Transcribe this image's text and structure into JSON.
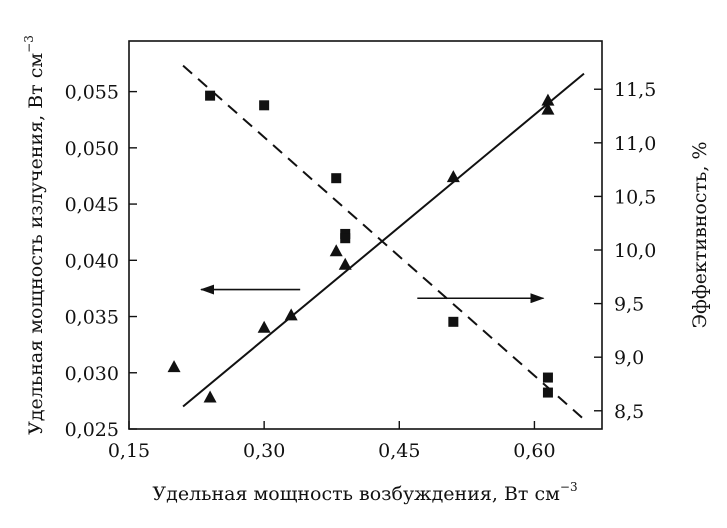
{
  "chart_data": {
    "type": "scatter",
    "xlabel": "Удельная мощность возбуждения, Вт см",
    "xlabel_sup": "−3",
    "ylabel": "Удельная мощность излучения, Вт см",
    "ylabel_sup": "−3",
    "y2label": "Эффективность, %",
    "xlim": [
      0.15,
      0.675
    ],
    "ylim": [
      0.025,
      0.0595
    ],
    "y2lim": [
      8.33,
      11.95
    ],
    "x_ticks": [
      0.15,
      0.3,
      0.45,
      0.6
    ],
    "x_tick_labels": [
      "0,15",
      "0,30",
      "0,45",
      "0,60"
    ],
    "y_ticks": [
      0.025,
      0.03,
      0.035,
      0.04,
      0.045,
      0.05,
      0.055
    ],
    "y_tick_labels": [
      "0,025",
      "0,030",
      "0,035",
      "0,040",
      "0,045",
      "0,050",
      "0,055"
    ],
    "y2_ticks": [
      8.5,
      9.0,
      9.5,
      10.0,
      10.5,
      11.0,
      11.5
    ],
    "y2_tick_labels": [
      "8,5",
      "9,0",
      "9,5",
      "10,0",
      "10,5",
      "11,0",
      "11,5"
    ],
    "grid": false,
    "series": [
      {
        "marker": "triangle",
        "axis": "left",
        "x": [
          0.2,
          0.24,
          0.3,
          0.33,
          0.38,
          0.39,
          0.51,
          0.615,
          0.615
        ],
        "y": [
          0.0305,
          0.0278,
          0.034,
          0.0351,
          0.0408,
          0.0396,
          0.0474,
          0.0542,
          0.0534
        ],
        "fit": {
          "style": "solid",
          "x": [
            0.21,
            0.655
          ],
          "y": [
            0.027,
            0.0566
          ]
        }
      },
      {
        "marker": "square",
        "axis": "right",
        "x": [
          0.24,
          0.3,
          0.38,
          0.39,
          0.39,
          0.51,
          0.615,
          0.615
        ],
        "y": [
          11.44,
          11.35,
          10.67,
          10.15,
          10.11,
          9.33,
          8.81,
          8.67
        ],
        "fit": {
          "style": "dashed",
          "x": [
            0.21,
            0.655
          ],
          "y": [
            11.72,
            8.42
          ]
        }
      }
    ],
    "annotations": [
      {
        "type": "arrow",
        "direction": "left",
        "target_axis": "left",
        "x": [
          0.34,
          0.23
        ],
        "y": 0.0374
      },
      {
        "type": "arrow",
        "direction": "right",
        "target_axis": "right",
        "x": [
          0.47,
          0.61
        ],
        "y": 9.55
      }
    ]
  }
}
